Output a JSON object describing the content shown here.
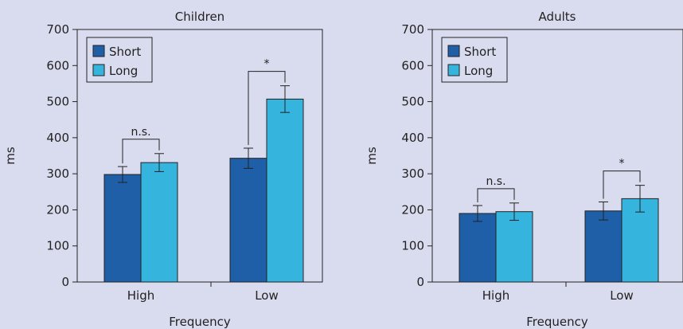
{
  "colors": {
    "background": "#d9dcef",
    "short": "#1f5fa8",
    "long": "#35b4de",
    "axis": "#222222"
  },
  "chart_data": [
    {
      "type": "bar",
      "title": "Children",
      "xlabel": "Frequency",
      "ylabel": "ms",
      "ylim": [
        0,
        700
      ],
      "yticks": [
        0,
        100,
        200,
        300,
        400,
        500,
        600,
        700
      ],
      "categories": [
        "High",
        "Low"
      ],
      "series": [
        {
          "name": "Short",
          "values": [
            298,
            343
          ],
          "errors": [
            22,
            28
          ]
        },
        {
          "name": "Long",
          "values": [
            331,
            507
          ],
          "errors": [
            25,
            37
          ]
        }
      ],
      "legend": "top-left",
      "grid": false,
      "annotations": [
        {
          "category": "High",
          "label": "n.s."
        },
        {
          "category": "Low",
          "label": "*"
        }
      ]
    },
    {
      "type": "bar",
      "title": "Adults",
      "xlabel": "Frequency",
      "ylabel": "ms",
      "ylim": [
        0,
        700
      ],
      "yticks": [
        0,
        100,
        200,
        300,
        400,
        500,
        600,
        700
      ],
      "categories": [
        "High",
        "Low"
      ],
      "series": [
        {
          "name": "Short",
          "values": [
            190,
            197
          ],
          "errors": [
            22,
            25
          ]
        },
        {
          "name": "Long",
          "values": [
            195,
            231
          ],
          "errors": [
            24,
            37
          ]
        }
      ],
      "legend": "top-left",
      "grid": false,
      "annotations": [
        {
          "category": "High",
          "label": "n.s."
        },
        {
          "category": "Low",
          "label": "*"
        }
      ]
    }
  ]
}
